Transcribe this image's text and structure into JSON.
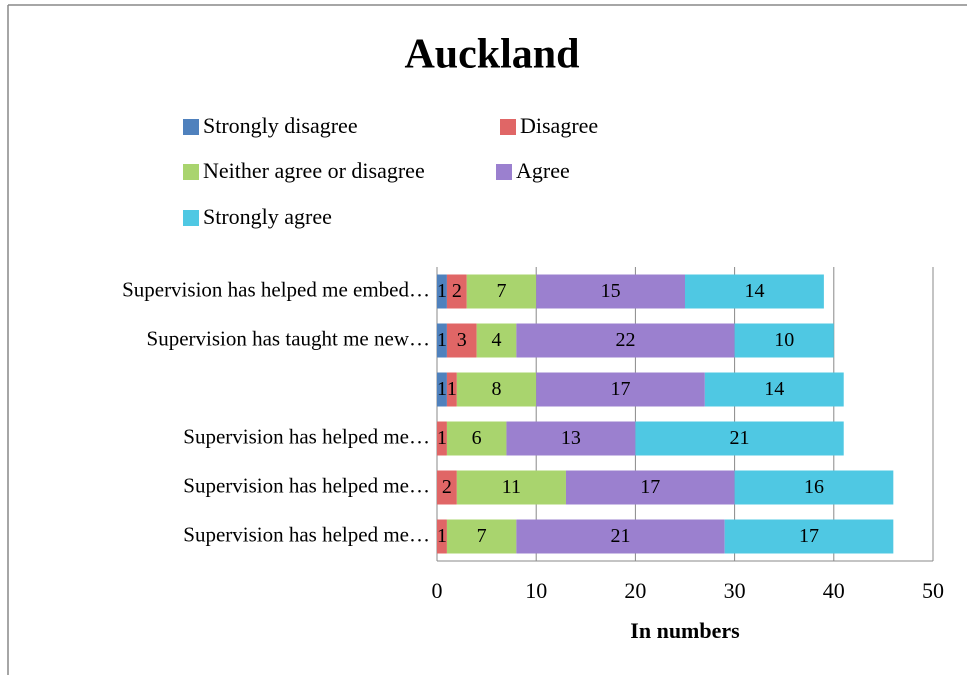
{
  "chart_data": {
    "type": "stacked_bar_horizontal",
    "title": "Auckland",
    "x_label": "In numbers",
    "categories": [
      "Supervision has helped me embed…",
      "Supervision has taught me new…",
      null,
      "Supervision has helped me…",
      "Supervision has helped me…",
      "Supervision has helped me…"
    ],
    "series": [
      {
        "name": "Strongly disagree",
        "color": "#4f81bd",
        "values": [
          1,
          1,
          1,
          null,
          null,
          null
        ]
      },
      {
        "name": "Disagree",
        "color": "#e06666",
        "values": [
          2,
          3,
          1,
          1,
          2,
          1
        ]
      },
      {
        "name": "Neither agree or disagree",
        "color": "#a9d46e",
        "values": [
          7,
          4,
          8,
          6,
          11,
          7
        ]
      },
      {
        "name": "Agree",
        "color": "#9b80cf",
        "values": [
          15,
          22,
          17,
          13,
          17,
          21
        ]
      },
      {
        "name": "Strongly agree",
        "color": "#4fc8e3",
        "values": [
          14,
          10,
          14,
          21,
          16,
          17
        ]
      }
    ],
    "xlim": [
      0,
      50
    ],
    "xticks": [
      0,
      10,
      20,
      30,
      40,
      50
    ],
    "grid": true
  }
}
